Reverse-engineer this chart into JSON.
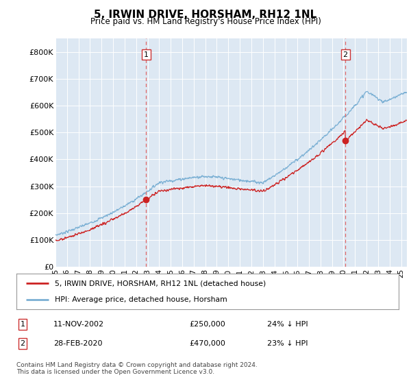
{
  "title": "5, IRWIN DRIVE, HORSHAM, RH12 1NL",
  "subtitle": "Price paid vs. HM Land Registry's House Price Index (HPI)",
  "ylim": [
    0,
    850000
  ],
  "yticks": [
    0,
    100000,
    200000,
    300000,
    400000,
    500000,
    600000,
    700000,
    800000
  ],
  "ytick_labels": [
    "£0",
    "£100K",
    "£200K",
    "£300K",
    "£400K",
    "£500K",
    "£600K",
    "£700K",
    "£800K"
  ],
  "bg_color": "#dde8f3",
  "line_color_hpi": "#7bb0d4",
  "line_color_price": "#cc2222",
  "vline_color": "#dd6666",
  "marker1_x": 2002.87,
  "marker1_y": 250000,
  "marker1_label": "1",
  "marker2_x": 2020.16,
  "marker2_y": 470000,
  "marker2_label": "2",
  "legend_line1": "5, IRWIN DRIVE, HORSHAM, RH12 1NL (detached house)",
  "legend_line2": "HPI: Average price, detached house, Horsham",
  "table_row1_num": "1",
  "table_row1_date": "11-NOV-2002",
  "table_row1_price": "£250,000",
  "table_row1_hpi": "24% ↓ HPI",
  "table_row2_num": "2",
  "table_row2_date": "28-FEB-2020",
  "table_row2_price": "£470,000",
  "table_row2_hpi": "23% ↓ HPI",
  "footnote": "Contains HM Land Registry data © Crown copyright and database right 2024.\nThis data is licensed under the Open Government Licence v3.0.",
  "xmin": 1995,
  "xmax": 2025.5
}
